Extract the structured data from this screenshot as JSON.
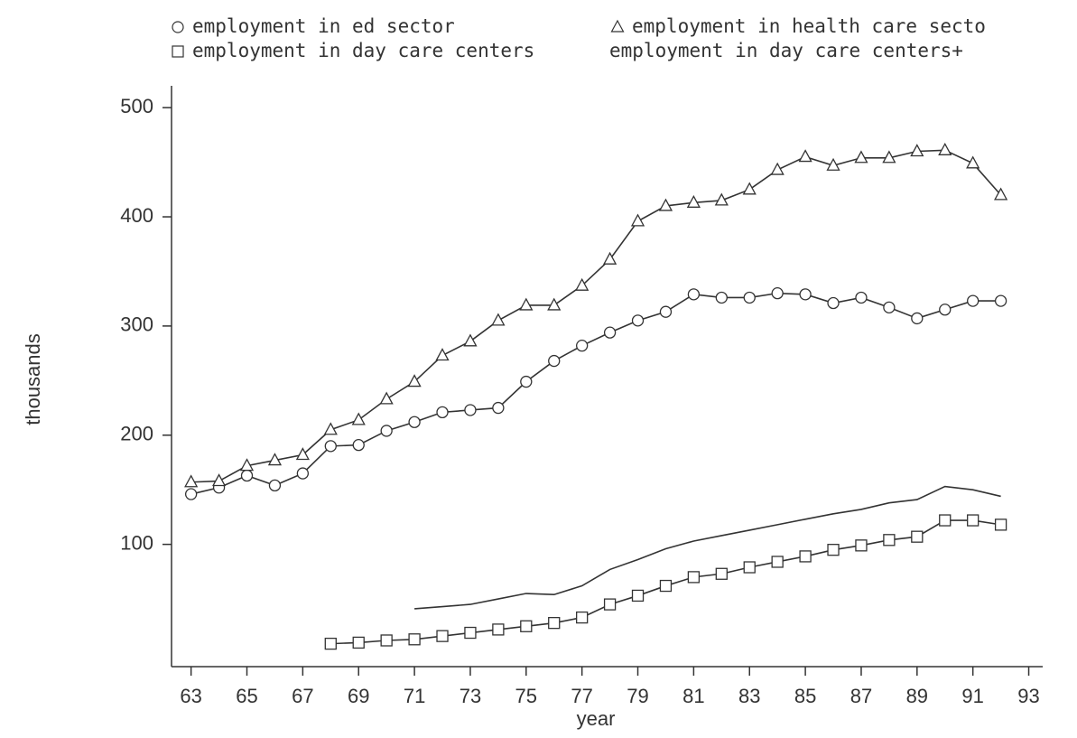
{
  "chart_data": {
    "type": "line",
    "x_label": "year",
    "y_label": "thousands",
    "x": [
      63,
      64,
      65,
      66,
      67,
      68,
      69,
      70,
      71,
      72,
      73,
      74,
      75,
      76,
      77,
      78,
      79,
      80,
      81,
      82,
      83,
      84,
      85,
      86,
      87,
      88,
      89,
      90,
      91,
      92
    ],
    "xlim": [
      62.3,
      93.5
    ],
    "xticks": [
      63,
      65,
      67,
      69,
      71,
      73,
      75,
      77,
      79,
      81,
      83,
      85,
      87,
      89,
      91,
      93
    ],
    "ylim": [
      -12,
      520
    ],
    "yticks": [
      100,
      200,
      300,
      400,
      500
    ],
    "grid": false,
    "series": [
      {
        "name": "employment in ed sector",
        "color": "#333333",
        "marker": "circle",
        "values": [
          146,
          152,
          163,
          154,
          165,
          190,
          191,
          204,
          212,
          221,
          223,
          225,
          249,
          268,
          282,
          294,
          305,
          313,
          329,
          326,
          326,
          330,
          329,
          321,
          326,
          317,
          307,
          315,
          323,
          323
        ]
      },
      {
        "name": "employment in health care secto",
        "color": "#333333",
        "marker": "triangle",
        "values": [
          157,
          158,
          172,
          177,
          182,
          205,
          214,
          233,
          249,
          273,
          286,
          305,
          319,
          319,
          337,
          361,
          396,
          410,
          413,
          415,
          425,
          443,
          455,
          447,
          454,
          454,
          460,
          461,
          449,
          420
        ]
      },
      {
        "name": "employment in day care centers",
        "color": "#333333",
        "marker": "square",
        "values": [
          null,
          null,
          null,
          null,
          null,
          9,
          10,
          12,
          13,
          16,
          19,
          22,
          25,
          28,
          33,
          45,
          53,
          62,
          70,
          73,
          79,
          84,
          89,
          95,
          99,
          104,
          107,
          122,
          122,
          118
        ]
      },
      {
        "name": "employment in day care centers+",
        "color": "#333333",
        "marker": "none",
        "values": [
          null,
          null,
          null,
          null,
          null,
          null,
          null,
          null,
          41,
          43,
          45,
          50,
          55,
          54,
          62,
          77,
          86,
          96,
          103,
          108,
          113,
          118,
          123,
          128,
          132,
          138,
          141,
          153,
          150,
          144
        ]
      }
    ]
  }
}
